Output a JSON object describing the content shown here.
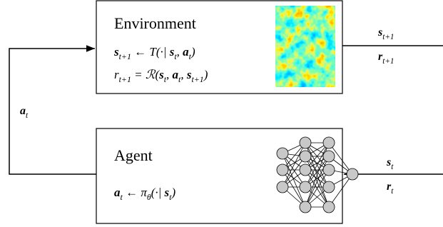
{
  "environment": {
    "title": "Environment",
    "formulas": [
      [
        {
          "text": "s",
          "sub": "t+1",
          "bold": true
        },
        {
          "text": " ← T(·| "
        },
        {
          "text": "s",
          "sub": "t",
          "bold": true
        },
        {
          "text": ", "
        },
        {
          "text": "a",
          "sub": "t",
          "bold": true
        },
        {
          "text": ")"
        }
      ],
      [
        {
          "text": "r",
          "sub": "t+1"
        },
        {
          "text": " = ℛ("
        },
        {
          "text": "s",
          "sub": "t",
          "bold": true
        },
        {
          "text": ", "
        },
        {
          "text": "a",
          "sub": "t",
          "bold": true
        },
        {
          "text": ", "
        },
        {
          "text": "s",
          "sub": "t+1",
          "bold": true
        },
        {
          "text": ")"
        }
      ]
    ]
  },
  "agent": {
    "title": "Agent",
    "formulas": [
      [
        {
          "text": "a",
          "sub": "t",
          "bold": true
        },
        {
          "text": " ← π"
        },
        {
          "text": "",
          "sub": "θ"
        },
        {
          "text": "(·| "
        },
        {
          "text": "s",
          "sub": "t",
          "bold": true
        },
        {
          "text": ")"
        }
      ]
    ]
  },
  "labels": {
    "env_out": [
      [
        {
          "text": "s",
          "sub": "t+1",
          "bold": true
        }
      ],
      [
        {
          "text": "r",
          "sub": "t+1",
          "bold": true
        }
      ]
    ],
    "action": [
      [
        {
          "text": "a",
          "sub": "t",
          "bold": true
        }
      ]
    ],
    "agent_in": [
      [
        {
          "text": "s",
          "sub": "t",
          "bold": true
        }
      ],
      [
        {
          "text": "r",
          "sub": "t",
          "bold": true
        }
      ]
    ]
  }
}
